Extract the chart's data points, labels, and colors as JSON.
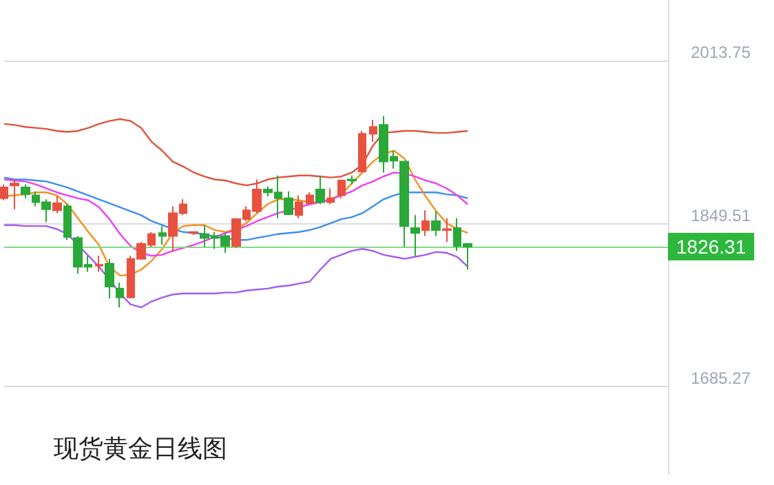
{
  "chart_data": {
    "type": "candlestick",
    "title": "现货黄金日线图",
    "categories": [
      null,
      null,
      null,
      null,
      null,
      null,
      null,
      null,
      null,
      null,
      null,
      null,
      null,
      null,
      null,
      null,
      null,
      null,
      null,
      null,
      null,
      null,
      null,
      null,
      null,
      null,
      null,
      null,
      null,
      null,
      null,
      null,
      null,
      null,
      null,
      null,
      null,
      null,
      null,
      null,
      null,
      null,
      null,
      null,
      null
    ],
    "ohlc": [
      [
        1875,
        1889,
        1873,
        1886
      ],
      [
        1888,
        1894,
        1864,
        1890
      ],
      [
        1886,
        1889,
        1875,
        1879
      ],
      [
        1878,
        1882,
        1867,
        1871
      ],
      [
        1871,
        1874,
        1851,
        1864
      ],
      [
        1863,
        1877,
        1860,
        1870
      ],
      [
        1867,
        1869,
        1833,
        1836
      ],
      [
        1835,
        1837,
        1799,
        1806
      ],
      [
        1808,
        1817,
        1801,
        1806
      ],
      [
        1807,
        1817,
        1801,
        1808
      ],
      [
        1809,
        1814,
        1774,
        1786
      ],
      [
        1784,
        1790,
        1765,
        1775
      ],
      [
        1775,
        1817,
        1774,
        1814
      ],
      [
        1814,
        1831,
        1813,
        1829
      ],
      [
        1828,
        1841,
        1826,
        1839
      ],
      [
        1840,
        1847,
        1828,
        1837
      ],
      [
        1837,
        1867,
        1821,
        1860
      ],
      [
        1860,
        1874,
        1858,
        1869
      ],
      [
        1840,
        1841,
        1838,
        1841
      ],
      [
        1839,
        1848,
        1826,
        1835
      ],
      [
        1837,
        1841,
        1824,
        1835
      ],
      [
        1837,
        1840,
        1820,
        1827
      ],
      [
        1827,
        1855,
        1825,
        1854
      ],
      [
        1854,
        1867,
        1852,
        1863
      ],
      [
        1862,
        1894,
        1860,
        1884
      ],
      [
        1884,
        1887,
        1877,
        1881
      ],
      [
        1881,
        1898,
        1855,
        1875
      ],
      [
        1875,
        1882,
        1858,
        1859
      ],
      [
        1858,
        1878,
        1855,
        1871
      ],
      [
        1870,
        1881,
        1869,
        1878
      ],
      [
        1884,
        1898,
        1869,
        1871
      ],
      [
        1871,
        1885,
        1869,
        1875
      ],
      [
        1878,
        1894,
        1875,
        1893
      ],
      [
        1894,
        1898,
        1889,
        1893
      ],
      [
        1902,
        1943,
        1902,
        1940
      ],
      [
        1940,
        1954,
        1932,
        1947
      ],
      [
        1949,
        1958,
        1901,
        1912
      ],
      [
        1917,
        1923,
        1905,
        1913
      ],
      [
        1912,
        1912,
        1826,
        1847
      ],
      [
        1845,
        1858,
        1817,
        1840
      ],
      [
        1843,
        1863,
        1837,
        1852
      ],
      [
        1852,
        1862,
        1837,
        1843
      ],
      [
        1843,
        1855,
        1831,
        1844
      ],
      [
        1845,
        1855,
        1822,
        1827
      ],
      [
        1829,
        1830,
        1803,
        1826.31
      ]
    ],
    "colors": [
      "#e8513f",
      "#e8513f",
      "#2aa838",
      "#2aa838",
      "#2aa838",
      "#e8513f",
      "#2aa838",
      "#2aa838",
      "#2aa838",
      "#e8513f",
      "#2aa838",
      "#2aa838",
      "#e8513f",
      "#e8513f",
      "#e8513f",
      "#2aa838",
      "#e8513f",
      "#e8513f",
      "#e8513f",
      "#2aa838",
      "#2aa838",
      "#2aa838",
      "#e8513f",
      "#e8513f",
      "#e8513f",
      "#2aa838",
      "#2aa838",
      "#2aa838",
      "#e8513f",
      "#e8513f",
      "#2aa838",
      "#e8513f",
      "#e8513f",
      "#2aa838",
      "#e8513f",
      "#e8513f",
      "#2aa838",
      "#2aa838",
      "#2aa838",
      "#2aa838",
      "#e8513f",
      "#2aa838",
      "#e8513f",
      "#2aa838",
      "#2aa838"
    ],
    "series": [
      {
        "type": "line",
        "color": "#e0533c",
        "values": [
          1950,
          1949,
          1947,
          1946,
          1945,
          1943,
          1942,
          1943,
          1946,
          1950,
          1953,
          1955,
          1953,
          1946,
          1932,
          1923,
          1912,
          1907,
          1901,
          1897,
          1894,
          1893,
          1890,
          1888,
          1890,
          1894,
          1896,
          1897,
          1898,
          1898,
          1897,
          1896,
          1897,
          1901,
          1909,
          1928,
          1941,
          1942,
          1943,
          1943,
          1942,
          1941,
          1941,
          1942,
          1943
        ]
      },
      {
        "type": "line",
        "color": "#3d8ef0",
        "values": [
          1896,
          1894,
          1894,
          1893,
          1892,
          1889,
          1886,
          1882,
          1878,
          1874,
          1870,
          1866,
          1862,
          1858,
          1852,
          1848,
          1844,
          1841,
          1840,
          1839,
          1836,
          1835,
          1833,
          1833,
          1835,
          1837,
          1839,
          1840,
          1841,
          1843,
          1846,
          1850,
          1854,
          1856,
          1860,
          1867,
          1874,
          1878,
          1881,
          1881,
          1881,
          1881,
          1879,
          1878,
          1875
        ]
      },
      {
        "type": "line",
        "color": "#a35cf0",
        "values": [
          1848,
          1848,
          1847,
          1847,
          1847,
          1844,
          1839,
          1828,
          1817,
          1806,
          1793,
          1779,
          1768,
          1765,
          1771,
          1775,
          1778,
          1779,
          1779,
          1779,
          1779,
          1780,
          1780,
          1782,
          1783,
          1784,
          1786,
          1787,
          1789,
          1791,
          1803,
          1814,
          1818,
          1822,
          1824,
          1822,
          1818,
          1816,
          1814,
          1816,
          1818,
          1821,
          1820,
          1816,
          1806
        ]
      },
      {
        "type": "line",
        "color": "#f5901e",
        "values": [
          1877,
          1878,
          1879,
          1881,
          1881,
          1878,
          1869,
          1855,
          1841,
          1828,
          1806,
          1797,
          1798,
          1803,
          1812,
          1824,
          1840,
          1847,
          1848,
          1848,
          1843,
          1841,
          1844,
          1850,
          1860,
          1869,
          1874,
          1874,
          1873,
          1871,
          1871,
          1874,
          1879,
          1890,
          1901,
          1912,
          1920,
          1923,
          1915,
          1894,
          1877,
          1862,
          1850,
          1844,
          1840
        ]
      },
      {
        "type": "line",
        "color": "#f03ef0",
        "values": [
          1894,
          1893,
          1892,
          1889,
          1885,
          1881,
          1878,
          1875,
          1873,
          1866,
          1854,
          1839,
          1827,
          1820,
          1817,
          1818,
          1822,
          1825,
          1828,
          1832,
          1836,
          1840,
          1843,
          1847,
          1852,
          1856,
          1860,
          1863,
          1866,
          1869,
          1871,
          1874,
          1878,
          1882,
          1888,
          1892,
          1897,
          1901,
          1900,
          1897,
          1893,
          1890,
          1885,
          1878,
          1869
        ]
      }
    ],
    "ylim": [
      1597,
      2075
    ],
    "yticks": [
      1685.27,
      1849.51,
      2013.75
    ],
    "grid": "y",
    "marker": "none",
    "ref_lines": [
      {
        "axis": "y",
        "value": 1826.31,
        "label": "1826.31",
        "color": "#7fdc7f"
      }
    ]
  }
}
